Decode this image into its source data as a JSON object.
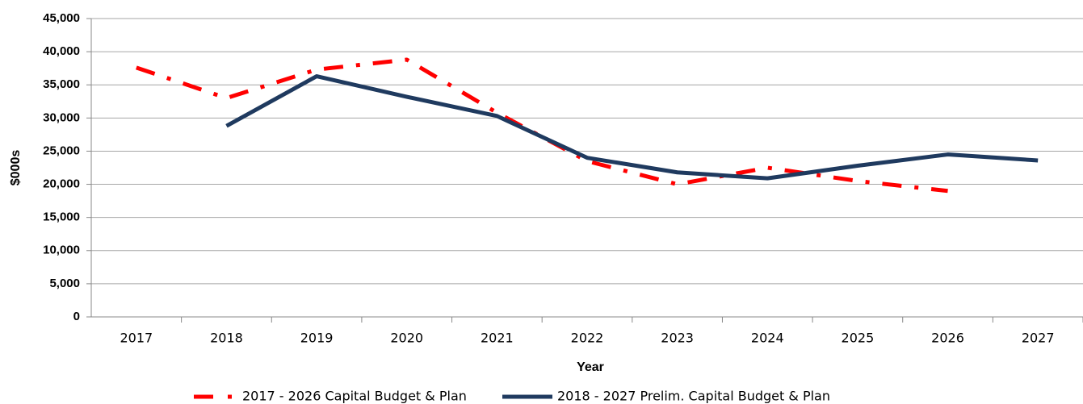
{
  "chart_data": {
    "type": "line",
    "x_label": "Year",
    "y_label": "$000s",
    "categories": [
      "2017",
      "2018",
      "2019",
      "2020",
      "2021",
      "2022",
      "2023",
      "2024",
      "2025",
      "2026",
      "2027"
    ],
    "series": [
      {
        "name": "2017 - 2026 Capital Budget & Plan",
        "color": "#ff0000",
        "style": "dash-dot",
        "values": [
          37600,
          33000,
          37300,
          38800,
          30800,
          23500,
          20000,
          22500,
          20500,
          19000,
          null
        ]
      },
      {
        "name": "2018 - 2027 Prelim. Capital Budget & Plan",
        "color": "#1f3a5f",
        "style": "solid",
        "values": [
          null,
          28800,
          36300,
          33200,
          30300,
          24000,
          21800,
          20900,
          22800,
          24500,
          23600
        ]
      }
    ],
    "ylim": [
      0,
      45000
    ],
    "yticks": [
      0,
      {
        "value": 5000,
        "label": "5,000"
      },
      {
        "value": 10000,
        "label": "10,000"
      },
      {
        "value": 15000,
        "label": "15,000"
      },
      {
        "value": 20000,
        "label": "20,000"
      },
      {
        "value": 25000,
        "label": "25,000"
      },
      {
        "value": 30000,
        "label": "30,000"
      },
      {
        "value": 35000,
        "label": "35,000"
      },
      {
        "value": 40000,
        "label": "40,000"
      },
      {
        "value": 45000,
        "label": "45,000"
      }
    ],
    "grid": true,
    "legend": "bottom"
  }
}
